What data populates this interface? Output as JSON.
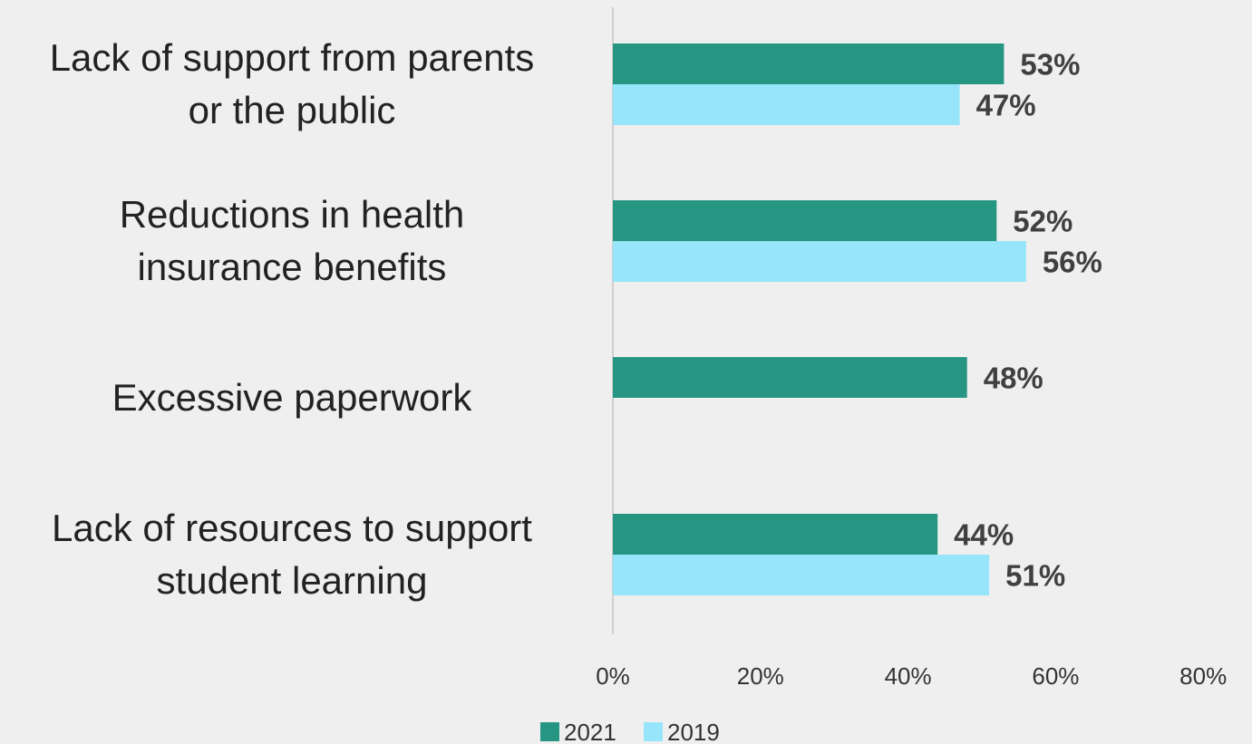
{
  "chart_data": {
    "type": "bar",
    "orientation": "horizontal",
    "categories": [
      [
        "Lack of support from parents",
        "or the public"
      ],
      [
        "Reductions in health",
        "insurance benefits"
      ],
      [
        "Excessive paperwork"
      ],
      [
        "Lack of resources to support",
        "student learning"
      ]
    ],
    "series": [
      {
        "name": "2021",
        "color": "#269683",
        "values": [
          53,
          52,
          48,
          44
        ]
      },
      {
        "name": "2019",
        "color": "#97e5fa",
        "values": [
          47,
          56,
          null,
          51
        ]
      }
    ],
    "data_labels": [
      [
        "53%",
        "52%",
        "48%",
        "44%"
      ],
      [
        "47%",
        "56%",
        "",
        "51%"
      ]
    ],
    "x_ticks": [
      "0%",
      "20%",
      "40%",
      "60%",
      "80%"
    ],
    "xlim": [
      0,
      80
    ],
    "grid": false,
    "legend_position": "bottom",
    "axis_line_color": "#d0d0d0",
    "background": "#efefef"
  }
}
